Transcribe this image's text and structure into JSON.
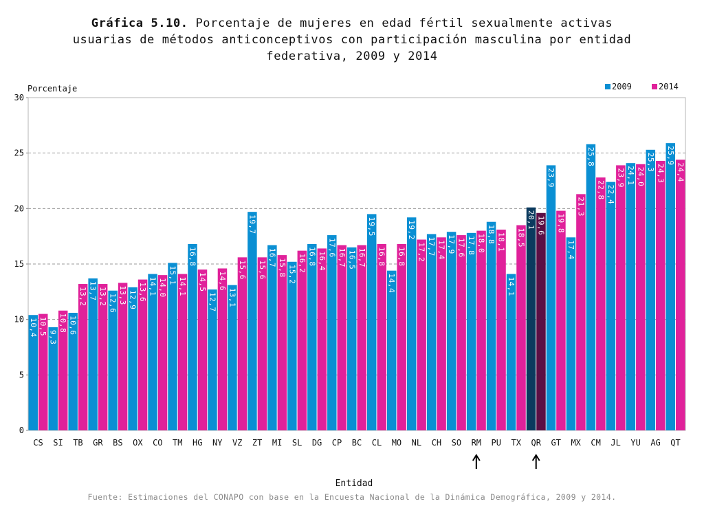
{
  "title": {
    "bold_part": "Gráfica 5.10.",
    "rest_line1": " Porcentaje de mujeres en edad fértil sexualmente activas",
    "line2": "usuarias de métodos anticonceptivos con participación masculina por entidad",
    "line3": "federativa, 2009 y 2014"
  },
  "source": "Fuente: Estimaciones del CONAPO con base en la Encuesta Nacional de la Dinámica Demográfica, 2009 y 2014.",
  "colors": {
    "series_2009": "#0a8fd3",
    "series_2014": "#e0219a",
    "highlight_2009": "#0b3a5e",
    "highlight_2014": "#5c0f45",
    "gridline": "#9a9a9a"
  },
  "chart_data": {
    "type": "bar",
    "title": "Gráfica 5.10. Porcentaje de mujeres en edad fértil sexualmente activas usuarias de métodos anticonceptivos con participación masculina por entidad federativa, 2009 y 2014",
    "xlabel": "Entidad",
    "ylabel": "Porcentaje",
    "ylim": [
      0,
      30
    ],
    "yticks": [
      0,
      5,
      10,
      15,
      20,
      25,
      30
    ],
    "grid": "horizontal dashed",
    "legend_position": "top-right",
    "categories": [
      "CS",
      "SI",
      "TB",
      "GR",
      "BS",
      "OX",
      "CO",
      "TM",
      "HG",
      "NY",
      "VZ",
      "ZT",
      "MI",
      "SL",
      "DG",
      "CP",
      "BC",
      "CL",
      "MO",
      "NL",
      "CH",
      "SO",
      "RM",
      "PU",
      "TX",
      "QR",
      "GT",
      "MX",
      "CM",
      "JL",
      "YU",
      "AG",
      "QT"
    ],
    "highlighted_category": "QR",
    "arrow_markers": [
      "RM",
      "QR"
    ],
    "series": [
      {
        "name": "2009",
        "values": [
          10.4,
          9.3,
          10.6,
          13.7,
          12.6,
          12.9,
          14.1,
          15.1,
          16.8,
          12.7,
          13.1,
          19.7,
          16.7,
          15.2,
          16.8,
          17.6,
          16.5,
          19.5,
          14.4,
          19.2,
          17.7,
          17.9,
          17.8,
          18.8,
          14.1,
          20.1,
          23.9,
          17.4,
          25.8,
          22.4,
          24.1,
          25.3,
          25.9
        ],
        "labels": [
          "10,4",
          "9,3",
          "10,6",
          "13,7",
          "12,6",
          "12,9",
          "14,1",
          "15,1",
          "16,8",
          "12,7",
          "13,1",
          "19,7",
          "16,7",
          "15,2",
          "16,8",
          "17,6",
          "16,5",
          "19,5",
          "14,4",
          "19,2",
          "17,7",
          "17,9",
          "17,8",
          "18,8",
          "14,1",
          "20,1",
          "23,9",
          "17,4",
          "25,8",
          "22,4",
          "24,1",
          "25,3",
          "25,9"
        ]
      },
      {
        "name": "2014",
        "values": [
          10.5,
          10.8,
          13.2,
          13.2,
          13.3,
          13.6,
          14.0,
          14.1,
          14.5,
          14.6,
          15.6,
          15.6,
          15.8,
          16.2,
          16.4,
          16.7,
          16.7,
          16.8,
          16.8,
          17.2,
          17.4,
          17.6,
          18.0,
          18.1,
          18.5,
          19.6,
          19.8,
          21.3,
          22.8,
          23.9,
          24.0,
          24.3,
          24.4
        ],
        "labels": [
          "10,5",
          "10,8",
          "13,2",
          "13,2",
          "13,3",
          "13,6",
          "14,0",
          "14,1",
          "14,5",
          "14,6",
          "15,6",
          "15,6",
          "15,8",
          "16,2",
          "16,4",
          "16,7",
          "16,7",
          "16,8",
          "16,8",
          "17,2",
          "17,4",
          "17,6",
          "18,0",
          "18,1",
          "18,5",
          "19,6",
          "19,8",
          "21,3",
          "22,8",
          "23,9",
          "24,0",
          "24,3",
          "24,4"
        ]
      }
    ]
  }
}
